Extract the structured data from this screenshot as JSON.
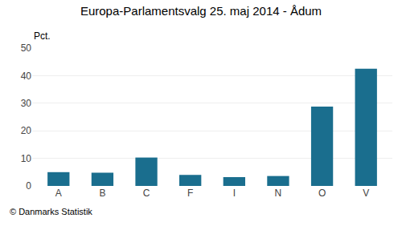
{
  "chart_data": {
    "type": "bar",
    "title": "Europa-Parlamentsvalg 25. maj 2014 - Ådum",
    "ylabel": "Pct.",
    "categories": [
      "A",
      "B",
      "C",
      "F",
      "I",
      "N",
      "O",
      "V"
    ],
    "values": [
      5.0,
      4.8,
      10.3,
      4.0,
      3.2,
      3.6,
      28.8,
      42.5
    ],
    "color": "#1a6e8e",
    "ylim": [
      0,
      50
    ],
    "yticks": [
      0,
      10,
      20,
      30,
      40,
      50
    ],
    "grid": true,
    "annotations": [
      "© Danmarks Statistik"
    ]
  }
}
